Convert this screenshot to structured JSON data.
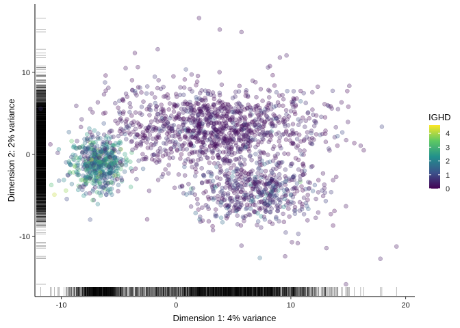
{
  "chart_data": {
    "type": "scatter",
    "title": "",
    "xlabel": "Dimension 1: 4% variance",
    "ylabel": "Dimension 2: 2% variance",
    "xlim": [
      -12.3,
      20.8
    ],
    "ylim": [
      -17.3,
      18.3
    ],
    "x_ticks": [
      -10,
      0,
      10,
      20
    ],
    "y_ticks": [
      -10,
      0,
      10
    ],
    "x_tick_labels": [
      "-10",
      "0",
      "10",
      "20"
    ],
    "y_tick_labels": [
      "-10",
      "0",
      "10"
    ],
    "grid": false,
    "rug": "both axes",
    "legend": {
      "title": "IGHD",
      "type": "continuous",
      "palette": "viridis",
      "range": [
        0,
        4.6
      ],
      "breaks": [
        0,
        1,
        2,
        3,
        4
      ],
      "labels": [
        "0",
        "1",
        "2",
        "3",
        "4"
      ],
      "placement": "right"
    },
    "point_colors": [
      "#440154",
      "#3b528b",
      "#21908c",
      "#5dc863",
      "#fde725"
    ],
    "clusters": [
      {
        "label": "cluster-left",
        "center": [
          -6.8,
          -1.1
        ],
        "spread": [
          1.2,
          1.7
        ],
        "count": 520,
        "ighd_mean": 1.8
      },
      {
        "label": "cluster-arc-upper",
        "center": [
          3.5,
          3.2
        ],
        "spread": [
          4.6,
          2.6
        ],
        "count": 1150,
        "ighd_mean": 0.3
      },
      {
        "label": "cluster-arc-lower",
        "center": [
          7.0,
          -4.5
        ],
        "spread": [
          2.8,
          2.0
        ],
        "count": 520,
        "ighd_mean": 0.6
      }
    ],
    "outliers": [
      {
        "x": 2.0,
        "y": 16.6,
        "ighd": 0.2
      },
      {
        "x": 3.8,
        "y": 15.2,
        "ighd": 0.2
      },
      {
        "x": 5.7,
        "y": 14.9,
        "ighd": 0.2
      },
      {
        "x": -1.6,
        "y": 12.8,
        "ighd": 0.3
      },
      {
        "x": -4.4,
        "y": 10.5,
        "ighd": 0.2
      },
      {
        "x": -5.9,
        "y": 8.1,
        "ighd": 0.3
      },
      {
        "x": 14.8,
        "y": -6.3,
        "ighd": 0.2
      },
      {
        "x": 13.1,
        "y": -11.4,
        "ighd": 0.2
      },
      {
        "x": 19.2,
        "y": -11.2,
        "ighd": 0.2
      },
      {
        "x": 17.8,
        "y": -12.7,
        "ighd": 0.3
      },
      {
        "x": 14.8,
        "y": -15.8,
        "ighd": 0.2
      },
      {
        "x": 7.3,
        "y": -12.6,
        "ighd": 1.6
      },
      {
        "x": 9.5,
        "y": -12.4,
        "ighd": 0.2
      },
      {
        "x": 10.6,
        "y": -10.8,
        "ighd": 0.2
      },
      {
        "x": 5.7,
        "y": -11.1,
        "ighd": 0.3
      },
      {
        "x": -10.6,
        "y": -4.9,
        "ighd": 4.2
      },
      {
        "x": -10.2,
        "y": -3.2,
        "ighd": 1.3
      },
      {
        "x": -9.6,
        "y": -4.4,
        "ighd": 3.8
      },
      {
        "x": 12.8,
        "y": -2.3,
        "ighd": 0.2
      },
      {
        "x": 12.0,
        "y": 1.8,
        "ighd": 0.2
      }
    ]
  }
}
